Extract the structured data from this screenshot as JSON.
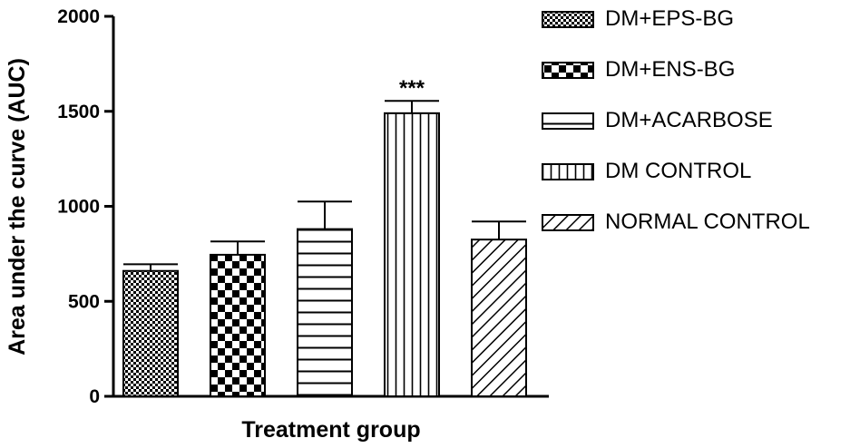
{
  "chart_data": {
    "type": "bar",
    "title": "",
    "xlabel": "Treatment group",
    "ylabel": "Area under the curve (AUC)",
    "ylim": [
      0,
      2000
    ],
    "yticks": [
      0,
      500,
      1000,
      1500,
      2000
    ],
    "grid": false,
    "legend_position": "right",
    "categories": [
      "DM+EPS-BG",
      "DM+ENS-BG",
      "DM+ACARBOSE",
      "DM CONTROL",
      "NORMAL CONTROL"
    ],
    "values": [
      660,
      745,
      880,
      1490,
      825
    ],
    "errors": [
      35,
      70,
      145,
      65,
      95
    ],
    "patterns": [
      "fine-checker",
      "checker",
      "horizontal-lines",
      "vertical-lines",
      "diagonal-lines"
    ],
    "annotations": [
      {
        "category": "DM CONTROL",
        "text": "***"
      }
    ]
  }
}
